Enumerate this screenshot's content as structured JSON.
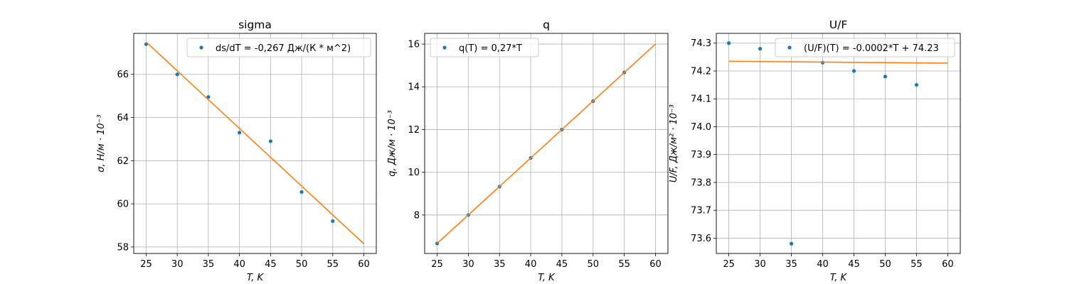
{
  "chart_data": [
    {
      "type": "scatter",
      "title": "sigma",
      "xlabel": "T, K",
      "ylabel": "σ, Н/м · 10⁻³",
      "xlim": [
        23,
        62
      ],
      "ylim": [
        57.7,
        67.9
      ],
      "xticks": [
        25,
        30,
        35,
        40,
        45,
        50,
        55,
        60
      ],
      "yticks": [
        58,
        60,
        62,
        64,
        66
      ],
      "grid": true,
      "legend_position": "top-right",
      "series": [
        {
          "name": "ds/dT = -0,267 Дж/(К * м^2)",
          "kind": "scatter",
          "color": "#1f77b4",
          "x": [
            25,
            30,
            35,
            40,
            45,
            50,
            55
          ],
          "y": [
            67.4,
            66.0,
            64.95,
            63.3,
            62.9,
            60.55,
            59.2
          ]
        },
        {
          "kind": "line",
          "color": "#ff7f0e",
          "x": [
            25,
            60
          ],
          "y": [
            67.5,
            58.15
          ]
        }
      ]
    },
    {
      "type": "scatter",
      "title": "q",
      "xlabel": "T, K",
      "ylabel": "q, Дж/м · 10⁻³",
      "xlim": [
        23,
        62
      ],
      "ylim": [
        6.2,
        16.5
      ],
      "xticks": [
        25,
        30,
        35,
        40,
        45,
        50,
        55,
        60
      ],
      "yticks": [
        8,
        10,
        12,
        14,
        16
      ],
      "grid": true,
      "legend_position": "top-left",
      "series": [
        {
          "name": "q(T) = 0,27*T",
          "kind": "scatter",
          "color": "#1f77b4",
          "x": [
            25,
            30,
            35,
            40,
            45,
            50,
            55
          ],
          "y": [
            6.67,
            8.0,
            9.33,
            10.67,
            12.0,
            13.33,
            14.67
          ]
        },
        {
          "kind": "line",
          "color": "#ff7f0e",
          "x": [
            25,
            60
          ],
          "y": [
            6.67,
            16.0
          ]
        }
      ]
    },
    {
      "type": "scatter",
      "title": "U/F",
      "xlabel": "T, K",
      "ylabel": "U/F, Дж/м² · 10⁻³",
      "xlim": [
        23,
        62
      ],
      "ylim": [
        73.545,
        74.335
      ],
      "xticks": [
        25,
        30,
        35,
        40,
        45,
        50,
        55,
        60
      ],
      "yticks": [
        73.6,
        73.7,
        73.8,
        73.9,
        74.0,
        74.1,
        74.2,
        74.3
      ],
      "grid": true,
      "legend_position": "top-right",
      "series": [
        {
          "name": "(U/F)(T) = -0.0002*T + 74.23",
          "kind": "scatter",
          "color": "#1f77b4",
          "x": [
            25,
            30,
            35,
            40,
            45,
            50,
            55
          ],
          "y": [
            74.3,
            74.28,
            73.58,
            74.23,
            74.2,
            74.18,
            74.15
          ]
        },
        {
          "kind": "line",
          "color": "#ff7f0e",
          "x": [
            25,
            60
          ],
          "y": [
            74.235,
            74.228
          ]
        }
      ]
    }
  ]
}
